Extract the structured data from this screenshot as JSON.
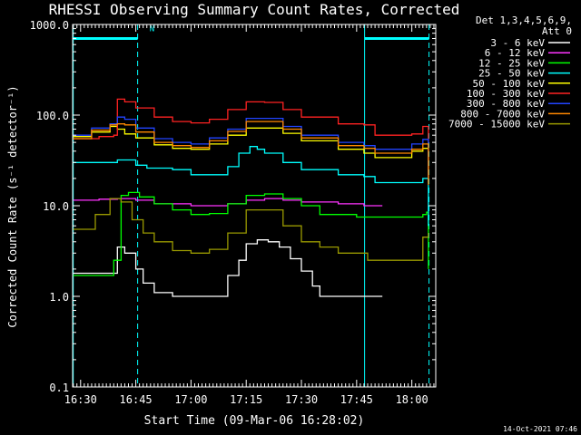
{
  "chart_data": {
    "type": "line",
    "title": "RHESSI Observing Summary Count Rates, Corrected",
    "xlabel": "Start Time (09-Mar-06 16:28:02)",
    "ylabel": "Corrected Count Rate (s⁻¹ detector⁻¹)",
    "yscale": "log",
    "ylim": [
      0.1,
      1000
    ],
    "xlim": [
      "16:27:50",
      "18:06:30"
    ],
    "x_ticks": [
      "16:30",
      "16:45",
      "17:00",
      "17:15",
      "17:30",
      "17:45",
      "18:00"
    ],
    "y_ticks": [
      "0.1",
      "1.0",
      "10.0",
      "100.0",
      "1000.0"
    ],
    "detector_info": [
      "Det 1,3,4,5,6,9,",
      "Att 0"
    ],
    "timestamp": "14-Oct-2021 07:46",
    "annotations": [
      {
        "text": "N",
        "time": "16:47",
        "value": 800
      }
    ],
    "time_marks": [
      {
        "time": "16:28:00",
        "style": "solid"
      },
      {
        "time": "16:45:30",
        "style": "dashed"
      },
      {
        "time": "17:47:10",
        "style": "solid"
      },
      {
        "time": "18:04:40",
        "style": "dashed"
      }
    ],
    "bars_at_top": [
      {
        "start": "16:28:00",
        "end": "16:45:30",
        "value": 700
      },
      {
        "start": "17:47:10",
        "end": "18:04:40",
        "value": 700
      }
    ],
    "series": [
      {
        "name": "3 - 6 keV",
        "color": "#ffffff",
        "x": [
          "16:28",
          "16:38",
          "16:40",
          "16:42",
          "16:45",
          "16:47",
          "16:50",
          "16:55",
          "17:00",
          "17:05",
          "17:08",
          "17:10",
          "17:13",
          "17:15",
          "17:18",
          "17:21",
          "17:24",
          "17:27",
          "17:30",
          "17:33",
          "17:35",
          "17:40",
          "17:45",
          "17:50",
          "17:52"
        ],
        "y": [
          1.8,
          1.8,
          3.5,
          3.0,
          2.0,
          1.4,
          1.1,
          1.0,
          1.0,
          1.0,
          1.0,
          1.7,
          2.5,
          3.8,
          4.2,
          4.0,
          3.5,
          2.6,
          1.9,
          1.3,
          1.0,
          1.0,
          1.0,
          1.0,
          1.0
        ]
      },
      {
        "name": "6 - 12 keV",
        "color": "#ff33ff",
        "x": [
          "16:28",
          "16:35",
          "16:40",
          "16:45",
          "16:50",
          "17:00",
          "17:05",
          "17:10",
          "17:15",
          "17:20",
          "17:25",
          "17:30",
          "17:40",
          "17:47",
          "17:52"
        ],
        "y": [
          11.5,
          11.8,
          12,
          11.5,
          10.5,
          10,
          10,
          10.5,
          11.5,
          12,
          11.5,
          11,
          10.5,
          10,
          10
        ]
      },
      {
        "name": "12 - 25 keV",
        "color": "#00ff00",
        "x": [
          "16:28",
          "16:38",
          "16:39",
          "16:41",
          "16:43",
          "16:46",
          "16:50",
          "16:55",
          "17:00",
          "17:05",
          "17:10",
          "17:15",
          "17:20",
          "17:25",
          "17:30",
          "17:35",
          "17:45",
          "17:47",
          "17:55",
          "18:00",
          "18:03",
          "18:04",
          "18:04:30"
        ],
        "y": [
          1.7,
          1.7,
          2.5,
          13,
          14,
          12.5,
          10.5,
          9,
          8,
          8.2,
          10.5,
          13,
          13.5,
          12,
          10,
          8,
          7.5,
          7.5,
          7.5,
          7.5,
          8,
          8.5,
          2.0
        ]
      },
      {
        "name": "25 - 50 keV",
        "color": "#00ffff",
        "x": [
          "16:28",
          "16:35",
          "16:40",
          "16:45",
          "16:48",
          "16:55",
          "17:00",
          "17:05",
          "17:10",
          "17:13",
          "17:16",
          "17:18",
          "17:20",
          "17:25",
          "17:30",
          "17:40",
          "17:47",
          "17:50",
          "18:00",
          "18:03",
          "18:04:30"
        ],
        "y": [
          30,
          30,
          32,
          28,
          26,
          25,
          22,
          22,
          27,
          38,
          45,
          42,
          38,
          30,
          25,
          22,
          21,
          18,
          18,
          20,
          6
        ]
      },
      {
        "name": "50 - 100 keV",
        "color": "#ffff00",
        "x": [
          "16:28",
          "16:33",
          "16:38",
          "16:40",
          "16:42",
          "16:45",
          "16:50",
          "16:55",
          "17:00",
          "17:05",
          "17:10",
          "17:15",
          "17:20",
          "17:25",
          "17:30",
          "17:40",
          "17:47",
          "17:50",
          "18:00",
          "18:03",
          "18:04:30"
        ],
        "y": [
          58,
          65,
          75,
          70,
          62,
          56,
          47,
          43,
          42,
          48,
          60,
          72,
          72,
          63,
          52,
          42,
          38,
          34,
          40,
          43,
          18
        ]
      },
      {
        "name": "100 - 300 keV",
        "color": "#ff2222",
        "x": [
          "16:28",
          "16:35",
          "16:39",
          "16:40",
          "16:42",
          "16:45",
          "16:50",
          "16:55",
          "17:00",
          "17:05",
          "17:10",
          "17:15",
          "17:20",
          "17:25",
          "17:30",
          "17:40",
          "17:47",
          "17:50",
          "18:00",
          "18:03",
          "18:04:30"
        ],
        "y": [
          55,
          58,
          60,
          150,
          140,
          120,
          95,
          85,
          82,
          90,
          115,
          140,
          138,
          115,
          95,
          80,
          78,
          60,
          62,
          75,
          20
        ]
      },
      {
        "name": "300 - 800 keV",
        "color": "#2244ff",
        "x": [
          "16:28",
          "16:33",
          "16:38",
          "16:40",
          "16:42",
          "16:45",
          "16:50",
          "16:55",
          "17:00",
          "17:05",
          "17:10",
          "17:15",
          "17:20",
          "17:25",
          "17:30",
          "17:40",
          "17:47",
          "17:50",
          "18:00",
          "18:03",
          "18:04:30"
        ],
        "y": [
          60,
          72,
          80,
          95,
          90,
          72,
          55,
          50,
          48,
          56,
          70,
          92,
          92,
          75,
          60,
          50,
          46,
          42,
          48,
          54,
          18
        ]
      },
      {
        "name": "800 - 7000 keV",
        "color": "#ff8800",
        "x": [
          "16:28",
          "16:33",
          "16:38",
          "16:40",
          "16:42",
          "16:45",
          "16:50",
          "16:55",
          "17:00",
          "17:05",
          "17:10",
          "17:15",
          "17:20",
          "17:25",
          "17:30",
          "17:40",
          "17:47",
          "17:50",
          "18:00",
          "18:03",
          "18:04:30"
        ],
        "y": [
          55,
          68,
          78,
          80,
          78,
          65,
          50,
          46,
          44,
          52,
          66,
          85,
          85,
          70,
          56,
          46,
          43,
          38,
          42,
          48,
          17
        ]
      },
      {
        "name": "7000 - 15000 keV",
        "color": "#999900",
        "x": [
          "16:28",
          "16:34",
          "16:38",
          "16:41",
          "16:44",
          "16:47",
          "16:50",
          "16:55",
          "17:00",
          "17:05",
          "17:10",
          "17:15",
          "17:20",
          "17:25",
          "17:30",
          "17:35",
          "17:40",
          "17:47",
          "17:48",
          "17:55",
          "18:00",
          "18:03",
          "18:04:30"
        ],
        "y": [
          5.5,
          8,
          12,
          11,
          7,
          5,
          4,
          3.2,
          3.0,
          3.3,
          5,
          9,
          9,
          6,
          4,
          3.5,
          3.0,
          3.0,
          2.5,
          2.5,
          2.5,
          4.5,
          5
        ]
      }
    ]
  }
}
